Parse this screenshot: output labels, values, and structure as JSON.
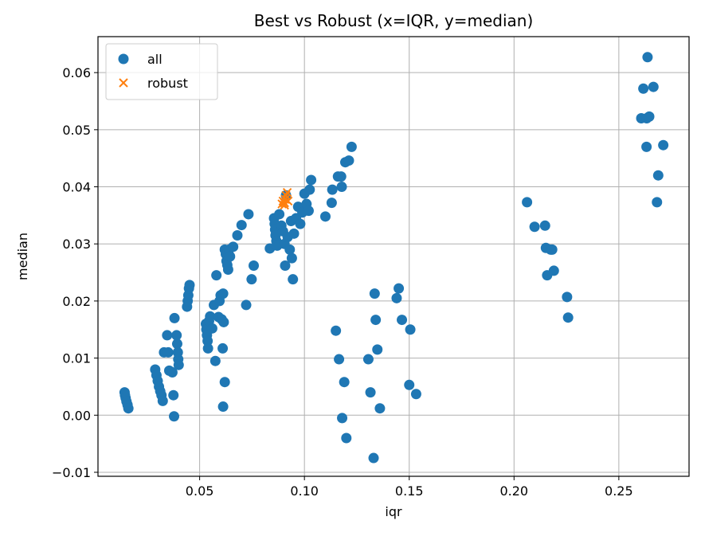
{
  "chart_data": {
    "type": "scatter",
    "title": "Best vs Robust (x=IQR, y=median)",
    "xlabel": "iqr",
    "ylabel": "median",
    "xlim": [
      0.0015,
      0.2835
    ],
    "ylim": [
      -0.0107,
      0.0663
    ],
    "xticks": [
      0.05,
      0.1,
      0.15,
      0.2,
      0.25
    ],
    "xtick_labels": [
      "0.05",
      "0.10",
      "0.15",
      "0.20",
      "0.25"
    ],
    "yticks": [
      -0.01,
      0.0,
      0.01,
      0.02,
      0.03,
      0.04,
      0.05,
      0.06
    ],
    "ytick_labels": [
      "−0.01",
      "0.00",
      "0.01",
      "0.02",
      "0.03",
      "0.04",
      "0.05",
      "0.06"
    ],
    "grid": true,
    "legend_position": "top-left",
    "series": [
      {
        "name": "all",
        "marker": "circle",
        "color": "#1f77b4",
        "points": [
          [
            0.0142,
            0.004
          ],
          [
            0.0144,
            0.0035
          ],
          [
            0.0147,
            0.003
          ],
          [
            0.0151,
            0.0024
          ],
          [
            0.0156,
            0.0018
          ],
          [
            0.016,
            0.0012
          ],
          [
            0.0288,
            0.008
          ],
          [
            0.0294,
            0.007
          ],
          [
            0.03,
            0.006
          ],
          [
            0.0306,
            0.005
          ],
          [
            0.0312,
            0.0042
          ],
          [
            0.0318,
            0.0035
          ],
          [
            0.0324,
            0.0025
          ],
          [
            0.033,
            0.011
          ],
          [
            0.0345,
            0.014
          ],
          [
            0.035,
            0.011
          ],
          [
            0.0355,
            0.0078
          ],
          [
            0.037,
            0.0075
          ],
          [
            0.0375,
            0.0035
          ],
          [
            0.0378,
            -0.0002
          ],
          [
            0.038,
            0.017
          ],
          [
            0.039,
            0.014
          ],
          [
            0.0393,
            0.0125
          ],
          [
            0.0396,
            0.011
          ],
          [
            0.0398,
            0.0098
          ],
          [
            0.04,
            0.0088
          ],
          [
            0.044,
            0.019
          ],
          [
            0.0443,
            0.02
          ],
          [
            0.0446,
            0.021
          ],
          [
            0.0449,
            0.0222
          ],
          [
            0.0452,
            0.0228
          ],
          [
            0.053,
            0.016
          ],
          [
            0.0532,
            0.015
          ],
          [
            0.0535,
            0.014
          ],
          [
            0.0538,
            0.013
          ],
          [
            0.054,
            0.0117
          ],
          [
            0.0545,
            0.0165
          ],
          [
            0.055,
            0.0173
          ],
          [
            0.056,
            0.0152
          ],
          [
            0.0568,
            0.0193
          ],
          [
            0.0575,
            0.0095
          ],
          [
            0.058,
            0.0245
          ],
          [
            0.059,
            0.0172
          ],
          [
            0.0595,
            0.02
          ],
          [
            0.06,
            0.021
          ],
          [
            0.0605,
            0.0168
          ],
          [
            0.061,
            0.0117
          ],
          [
            0.0615,
            0.0163
          ],
          [
            0.0612,
            0.0015
          ],
          [
            0.062,
            0.0058
          ],
          [
            0.0612,
            0.0213
          ],
          [
            0.062,
            0.029
          ],
          [
            0.0625,
            0.0282
          ],
          [
            0.0628,
            0.027
          ],
          [
            0.0632,
            0.0263
          ],
          [
            0.0636,
            0.0255
          ],
          [
            0.064,
            0.029
          ],
          [
            0.0645,
            0.0278
          ],
          [
            0.066,
            0.0295
          ],
          [
            0.068,
            0.0315
          ],
          [
            0.07,
            0.0333
          ],
          [
            0.0722,
            0.0193
          ],
          [
            0.0733,
            0.0352
          ],
          [
            0.0748,
            0.0238
          ],
          [
            0.0758,
            0.0262
          ],
          [
            0.0835,
            0.0292
          ],
          [
            0.0855,
            0.0345
          ],
          [
            0.0858,
            0.0335
          ],
          [
            0.086,
            0.0325
          ],
          [
            0.0862,
            0.0315
          ],
          [
            0.0866,
            0.0305
          ],
          [
            0.087,
            0.0297
          ],
          [
            0.088,
            0.0352
          ],
          [
            0.089,
            0.0332
          ],
          [
            0.0898,
            0.0322
          ],
          [
            0.0905,
            0.03
          ],
          [
            0.0908,
            0.0262
          ],
          [
            0.0912,
            0.0385
          ],
          [
            0.092,
            0.0312
          ],
          [
            0.093,
            0.029
          ],
          [
            0.0936,
            0.034
          ],
          [
            0.094,
            0.0275
          ],
          [
            0.0945,
            0.0238
          ],
          [
            0.095,
            0.0318
          ],
          [
            0.096,
            0.0345
          ],
          [
            0.097,
            0.0365
          ],
          [
            0.098,
            0.0335
          ],
          [
            0.099,
            0.0355
          ],
          [
            0.1,
            0.0388
          ],
          [
            0.101,
            0.037
          ],
          [
            0.102,
            0.0358
          ],
          [
            0.1025,
            0.0395
          ],
          [
            0.1032,
            0.0412
          ],
          [
            0.11,
            0.0348
          ],
          [
            0.113,
            0.0372
          ],
          [
            0.1133,
            0.0395
          ],
          [
            0.115,
            0.0148
          ],
          [
            0.116,
            0.0418
          ],
          [
            0.1165,
            0.0098
          ],
          [
            0.1175,
            0.0418
          ],
          [
            0.1178,
            0.04
          ],
          [
            0.118,
            -0.0005
          ],
          [
            0.119,
            0.0058
          ],
          [
            0.1195,
            0.0443
          ],
          [
            0.12,
            -0.004
          ],
          [
            0.1212,
            0.0446
          ],
          [
            0.1225,
            0.047
          ],
          [
            0.1305,
            0.0098
          ],
          [
            0.1315,
            0.004
          ],
          [
            0.133,
            -0.0075
          ],
          [
            0.1335,
            0.0213
          ],
          [
            0.134,
            0.0167
          ],
          [
            0.1348,
            0.0115
          ],
          [
            0.136,
            0.0012
          ],
          [
            0.144,
            0.0205
          ],
          [
            0.145,
            0.0222
          ],
          [
            0.1465,
            0.0167
          ],
          [
            0.15,
            0.0053
          ],
          [
            0.1505,
            0.015
          ],
          [
            0.1533,
            0.0037
          ],
          [
            0.2062,
            0.0373
          ],
          [
            0.2098,
            0.033
          ],
          [
            0.2148,
            0.0332
          ],
          [
            0.2152,
            0.0293
          ],
          [
            0.2158,
            0.0245
          ],
          [
            0.2175,
            0.029
          ],
          [
            0.2182,
            0.029
          ],
          [
            0.219,
            0.0253
          ],
          [
            0.2253,
            0.0207
          ],
          [
            0.2258,
            0.0171
          ],
          [
            0.2607,
            0.052
          ],
          [
            0.2617,
            0.0572
          ],
          [
            0.2632,
            0.047
          ],
          [
            0.2633,
            0.052
          ],
          [
            0.2637,
            0.0627
          ],
          [
            0.2645,
            0.0523
          ],
          [
            0.2665,
            0.0575
          ],
          [
            0.2682,
            0.0373
          ],
          [
            0.2688,
            0.042
          ],
          [
            0.2712,
            0.0473
          ]
        ]
      },
      {
        "name": "robust",
        "marker": "x",
        "color": "#ff7f0e",
        "points": [
          [
            0.0893,
            0.037
          ],
          [
            0.0898,
            0.0375
          ],
          [
            0.0905,
            0.0372
          ],
          [
            0.0908,
            0.0378
          ],
          [
            0.0912,
            0.0385
          ],
          [
            0.0918,
            0.039
          ],
          [
            0.0922,
            0.0375
          ],
          [
            0.0905,
            0.0368
          ]
        ]
      }
    ]
  }
}
